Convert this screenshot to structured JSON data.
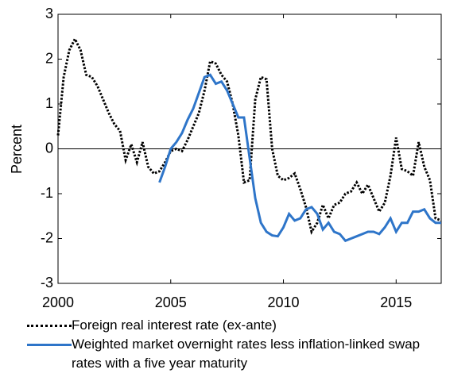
{
  "chart_data": {
    "type": "line",
    "ylabel": "Percent",
    "x": [
      2000,
      2000.25,
      2000.5,
      2000.75,
      2001,
      2001.25,
      2001.5,
      2001.75,
      2002,
      2002.25,
      2002.5,
      2002.75,
      2003,
      2003.25,
      2003.5,
      2003.75,
      2004,
      2004.25,
      2004.5,
      2004.75,
      2005,
      2005.25,
      2005.5,
      2005.75,
      2006,
      2006.25,
      2006.5,
      2006.75,
      2007,
      2007.25,
      2007.5,
      2007.75,
      2008,
      2008.25,
      2008.5,
      2008.75,
      2009,
      2009.25,
      2009.5,
      2009.75,
      2010,
      2010.25,
      2010.5,
      2010.75,
      2011,
      2011.25,
      2011.5,
      2011.75,
      2012,
      2012.25,
      2012.5,
      2012.75,
      2013,
      2013.25,
      2013.5,
      2013.75,
      2014,
      2014.25,
      2014.5,
      2014.75,
      2015,
      2015.25,
      2015.5,
      2015.75,
      2016,
      2016.25,
      2016.5,
      2016.75,
      2017
    ],
    "series": [
      {
        "name": "Foreign real interest rate (ex-ante)",
        "color": "#000000",
        "dash": "dotted",
        "values": [
          0.3,
          1.6,
          2.2,
          2.45,
          2.2,
          1.65,
          1.6,
          1.4,
          1.1,
          0.8,
          0.55,
          0.4,
          -0.25,
          0.1,
          -0.3,
          0.15,
          -0.4,
          -0.55,
          -0.5,
          -0.3,
          -0.05,
          0.0,
          -0.05,
          0.2,
          0.5,
          0.8,
          1.3,
          1.95,
          1.9,
          1.65,
          1.5,
          1.0,
          0.3,
          -0.75,
          -0.7,
          1.1,
          1.6,
          1.55,
          0.0,
          -0.6,
          -0.7,
          -0.65,
          -0.55,
          -0.9,
          -1.3,
          -1.85,
          -1.65,
          -1.25,
          -1.55,
          -1.25,
          -1.2,
          -1.0,
          -0.95,
          -0.75,
          -1.0,
          -0.8,
          -1.1,
          -1.4,
          -1.2,
          -0.6,
          0.25,
          -0.45,
          -0.5,
          -0.6,
          0.15,
          -0.4,
          -0.7,
          -1.55,
          -1.6
        ]
      },
      {
        "name": "Weighted market overnight rates less inflation-linked swap rates with a five year maturity",
        "color": "#2e75c9",
        "dash": "solid",
        "values": [
          null,
          null,
          null,
          null,
          null,
          null,
          null,
          null,
          null,
          null,
          null,
          null,
          null,
          null,
          null,
          null,
          null,
          null,
          -0.75,
          -0.4,
          0.0,
          0.15,
          0.35,
          0.65,
          0.9,
          1.25,
          1.6,
          1.65,
          1.45,
          1.5,
          1.3,
          1.0,
          0.7,
          0.7,
          -0.2,
          -1.1,
          -1.65,
          -1.85,
          -1.93,
          -1.95,
          -1.75,
          -1.45,
          -1.6,
          -1.55,
          -1.35,
          -1.3,
          -1.45,
          -1.8,
          -1.65,
          -1.85,
          -1.9,
          -2.05,
          -2.0,
          -1.95,
          -1.9,
          -1.85,
          -1.85,
          -1.9,
          -1.75,
          -1.55,
          -1.85,
          -1.65,
          -1.65,
          -1.4,
          -1.4,
          -1.35,
          -1.55,
          -1.65,
          -1.65
        ]
      }
    ],
    "xlim": [
      2000,
      2017
    ],
    "xticks": [
      2000,
      2005,
      2010,
      2015
    ],
    "ylim": [
      -3,
      3
    ],
    "yticks": [
      -3,
      -2,
      -1,
      0,
      1,
      2,
      3
    ],
    "reference_line": 0
  }
}
